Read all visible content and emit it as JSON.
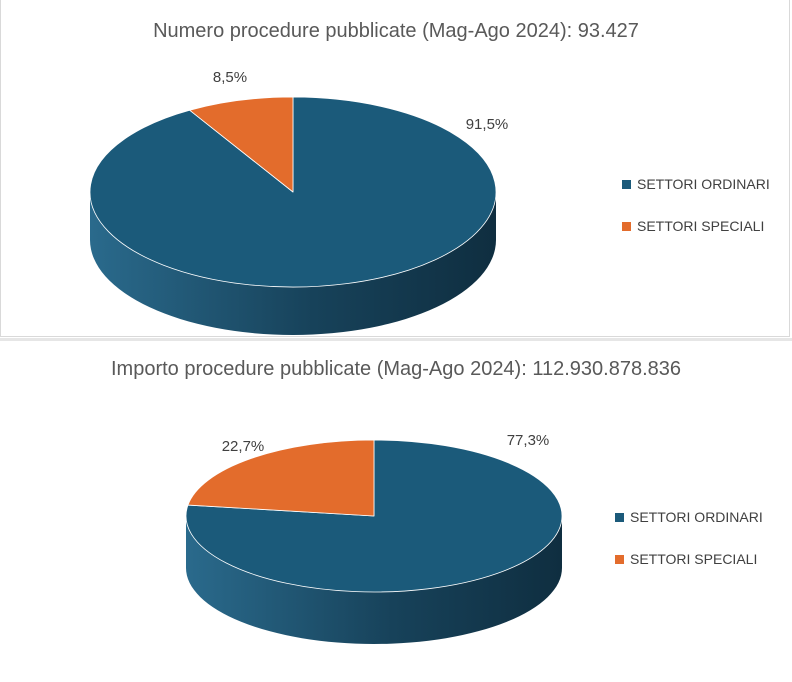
{
  "chart_data": [
    {
      "type": "pie",
      "title": "Numero procedure pubblicate (Mag-Ago 2024): 93.427",
      "categories": [
        "SETTORI ORDINARI",
        "SETTORI SPECIALI"
      ],
      "values": [
        91.5,
        8.5
      ],
      "data_labels": [
        "91,5%",
        "8,5%"
      ],
      "colors": [
        "#1b5a7a",
        "#e36c2c"
      ],
      "legend_position": "right",
      "style": "3d"
    },
    {
      "type": "pie",
      "title": "Importo procedure pubblicate (Mag-Ago 2024): 112.930.878.836",
      "categories": [
        "SETTORI ORDINARI",
        "SETTORI SPECIALI"
      ],
      "values": [
        77.3,
        22.7
      ],
      "data_labels": [
        "77,3%",
        "22,7%"
      ],
      "colors": [
        "#1b5a7a",
        "#e36c2c"
      ],
      "legend_position": "right",
      "style": "3d"
    }
  ]
}
